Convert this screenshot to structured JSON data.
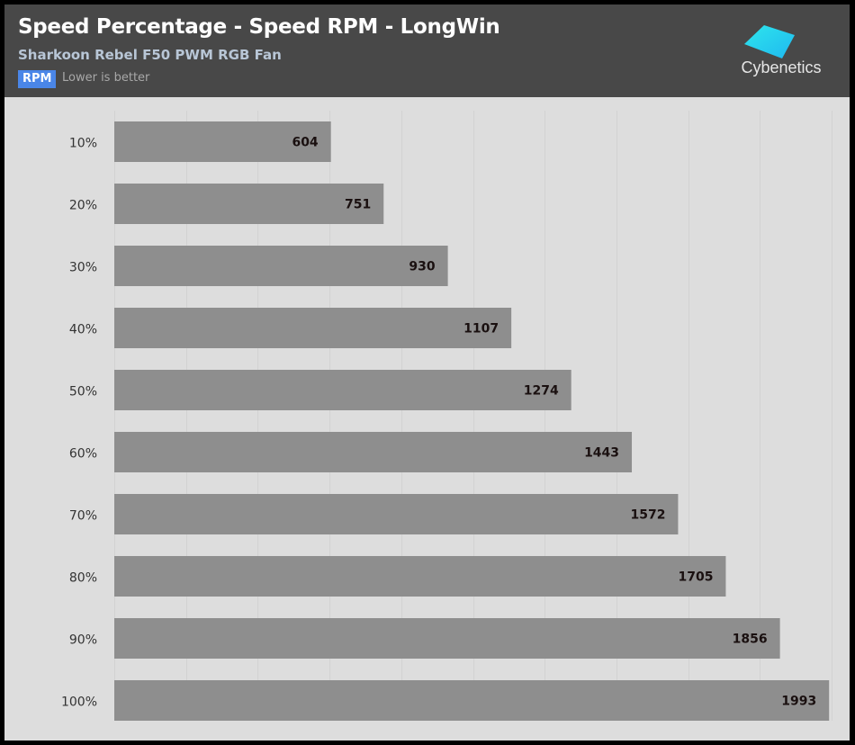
{
  "header": {
    "title": "Speed Percentage - Speed RPM - LongWin",
    "subtitle": "Sharkoon Rebel F50 PWM RGB Fan",
    "badge": "RPM",
    "note": "Lower is better",
    "logo_text": "Cybenetics"
  },
  "colors": {
    "bar": "#8e8e8e",
    "background": "#dddddd",
    "header": "#484848",
    "gridline": "#d2d2d2",
    "badge": "#4a86e8",
    "logo_cyan": "#29d3f0"
  },
  "chart_data": {
    "type": "bar",
    "orientation": "horizontal",
    "title": "Speed Percentage - Speed RPM - LongWin",
    "subtitle": "Sharkoon Rebel F50 PWM RGB Fan",
    "unit": "RPM",
    "note": "Lower is better",
    "categories": [
      "10%",
      "20%",
      "30%",
      "40%",
      "50%",
      "60%",
      "70%",
      "80%",
      "90%",
      "100%"
    ],
    "values": [
      604,
      751,
      930,
      1107,
      1274,
      1443,
      1572,
      1705,
      1856,
      1993
    ],
    "xlim": [
      0,
      2000
    ],
    "grid_step": 200,
    "grid": true,
    "xlabel": "",
    "ylabel": "",
    "legend": "none"
  }
}
